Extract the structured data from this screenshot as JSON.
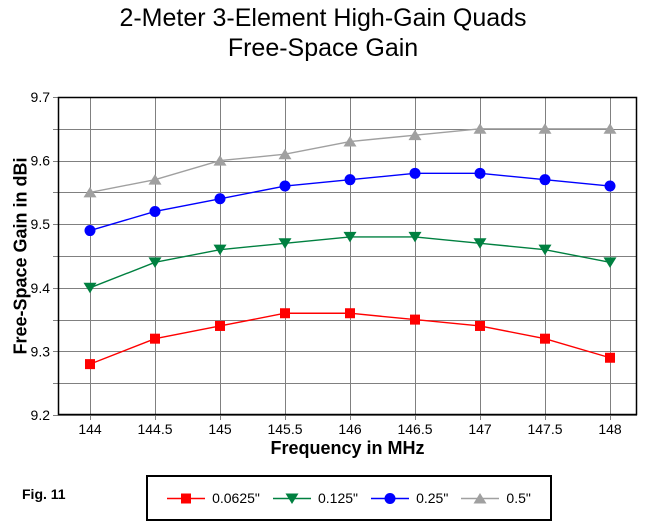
{
  "figure_label": "Fig. 11",
  "chart_data": {
    "type": "line",
    "title": "2-Meter 3-Element High-Gain Quads",
    "subtitle": "Free-Space Gain",
    "xlabel": "Frequency in MHz",
    "ylabel": "Free-Space Gain in dBi",
    "x": [
      144,
      144.5,
      145,
      145.5,
      146,
      146.5,
      147,
      147.5,
      148
    ],
    "x_tick_labels": [
      "144",
      "144.5",
      "145",
      "145.5",
      "146",
      "146.5",
      "147",
      "147.5",
      "148"
    ],
    "ylim": [
      9.2,
      9.7
    ],
    "y_major_ticks": [
      9.2,
      9.3,
      9.4,
      9.5,
      9.6,
      9.7
    ],
    "y_tick_labels": [
      "9.2",
      "9.3",
      "9.4",
      "9.5",
      "9.6",
      "9.7"
    ],
    "y_grid_step": 0.05,
    "grid": true,
    "legend_position": "bottom",
    "colors": {
      "grid": "#808080",
      "axis": "#000000",
      "background": "#ffffff"
    },
    "series": [
      {
        "name": "0.0625\"",
        "marker": "square",
        "color": "#ff0000",
        "values": [
          9.28,
          9.32,
          9.34,
          9.36,
          9.36,
          9.35,
          9.34,
          9.32,
          9.29
        ]
      },
      {
        "name": "0.125\"",
        "marker": "triangle-down",
        "color": "#008040",
        "values": [
          9.4,
          9.44,
          9.46,
          9.47,
          9.48,
          9.48,
          9.47,
          9.46,
          9.44
        ]
      },
      {
        "name": "0.25\"",
        "marker": "circle",
        "color": "#0000ff",
        "values": [
          9.49,
          9.52,
          9.54,
          9.56,
          9.57,
          9.58,
          9.58,
          9.57,
          9.56
        ]
      },
      {
        "name": "0.5\"",
        "marker": "triangle-up",
        "color": "#a0a0a0",
        "values": [
          9.55,
          9.57,
          9.6,
          9.61,
          9.63,
          9.64,
          9.65,
          9.65,
          9.65
        ]
      }
    ]
  }
}
